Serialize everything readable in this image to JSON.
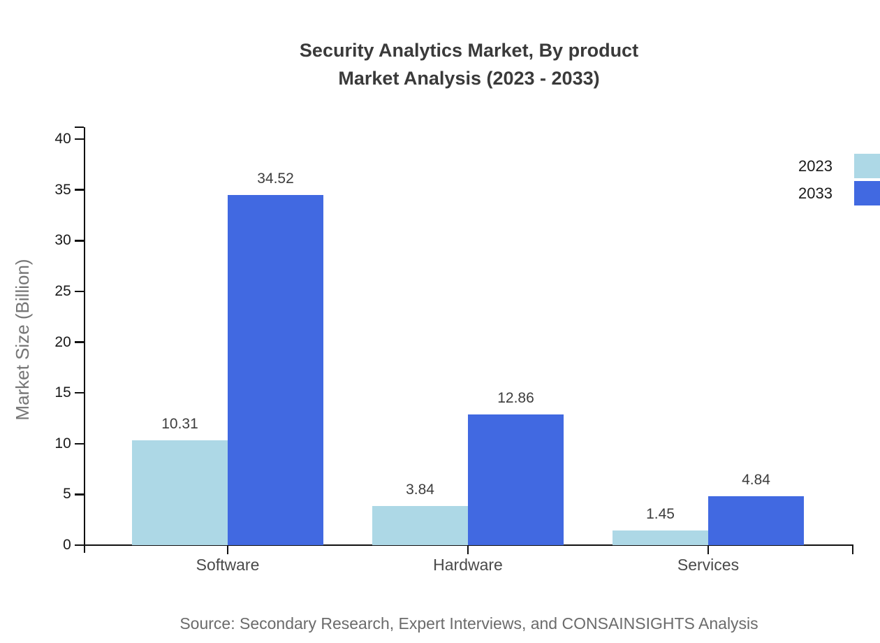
{
  "title": {
    "line1": "Security Analytics Market, By product",
    "line2": "Market Analysis (2023 - 2033)"
  },
  "source_text": "Source: Secondary Research, Expert Interviews, and CONSAINSIGHTS Analysis",
  "chart_data": {
    "type": "bar",
    "title": "Security Analytics Market, By product — Market Analysis (2023 - 2033)",
    "categories": [
      "Software",
      "Hardware",
      "Services"
    ],
    "series": [
      {
        "name": "2023",
        "color": "#ADD8E6",
        "values": [
          10.31,
          3.84,
          1.45
        ]
      },
      {
        "name": "2033",
        "color": "#4169E1",
        "values": [
          34.52,
          12.86,
          4.84
        ]
      }
    ],
    "value_labels": [
      "10.31",
      "34.52",
      "3.84",
      "12.86",
      "1.45",
      "4.84"
    ],
    "xlabel": "",
    "ylabel": "Market Size (Billion)",
    "ylim": [
      0,
      40
    ],
    "yticks": [
      0,
      5,
      10,
      15,
      20,
      25,
      30,
      35,
      40
    ],
    "grid": false,
    "legend_position": "top-right-edge"
  },
  "colors": {
    "axis": "#111111",
    "title_text": "#3a3a3a",
    "tick_label": "#1a1a1a",
    "category_label": "#4a4a4a",
    "value_label": "#3d3d3d",
    "muted_text": "#6b6b6b",
    "series_2023": "#ADD8E6",
    "series_2033": "#4169E1"
  }
}
